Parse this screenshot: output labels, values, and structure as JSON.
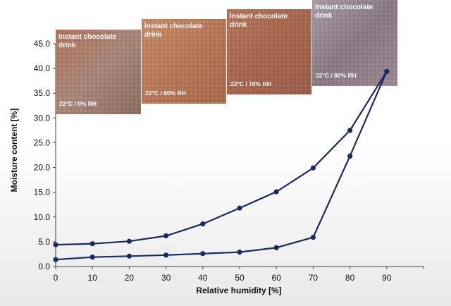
{
  "chart_data": {
    "type": "line",
    "xlabel": "Relative humidity [%]",
    "ylabel": "Moisture content [%]",
    "xlim": [
      0,
      100
    ],
    "ylim": [
      0,
      45
    ],
    "x_ticks": [
      "0",
      "10",
      "20",
      "30",
      "40",
      "50",
      "60",
      "70",
      "80",
      "90"
    ],
    "y_ticks": [
      "0.0",
      "5.0",
      "10.0",
      "15.0",
      "20.0",
      "25.0",
      "30.0",
      "35.0",
      "40.0",
      "45.0"
    ],
    "grid": false,
    "series": [
      {
        "x": [
          0,
          10,
          20,
          30,
          40,
          50,
          60,
          70,
          80,
          90
        ],
        "values": [
          4.4,
          4.6,
          5.1,
          6.2,
          8.6,
          11.8,
          15.1,
          19.9,
          27.5,
          39.4
        ]
      },
      {
        "x": [
          0,
          10,
          20,
          30,
          40,
          50,
          60,
          70,
          80,
          90
        ],
        "values": [
          1.4,
          1.9,
          2.1,
          2.3,
          2.6,
          2.9,
          3.8,
          5.9,
          22.3,
          39.4
        ]
      }
    ],
    "line_color": "#1b2a5e"
  },
  "photos": [
    {
      "title1": "Instant chocolate",
      "title2": "drink",
      "condition": "22°C / 0% RH"
    },
    {
      "title1": "Instant chocolate",
      "title2": "drink",
      "condition": "22°C / 60% RH"
    },
    {
      "title1": "Instant chocolate",
      "title2": "drink",
      "condition": "22°C / 70% RH"
    },
    {
      "title1": "Instant chocolate",
      "title2": "drink",
      "condition": "22°C / 80% RH"
    }
  ]
}
